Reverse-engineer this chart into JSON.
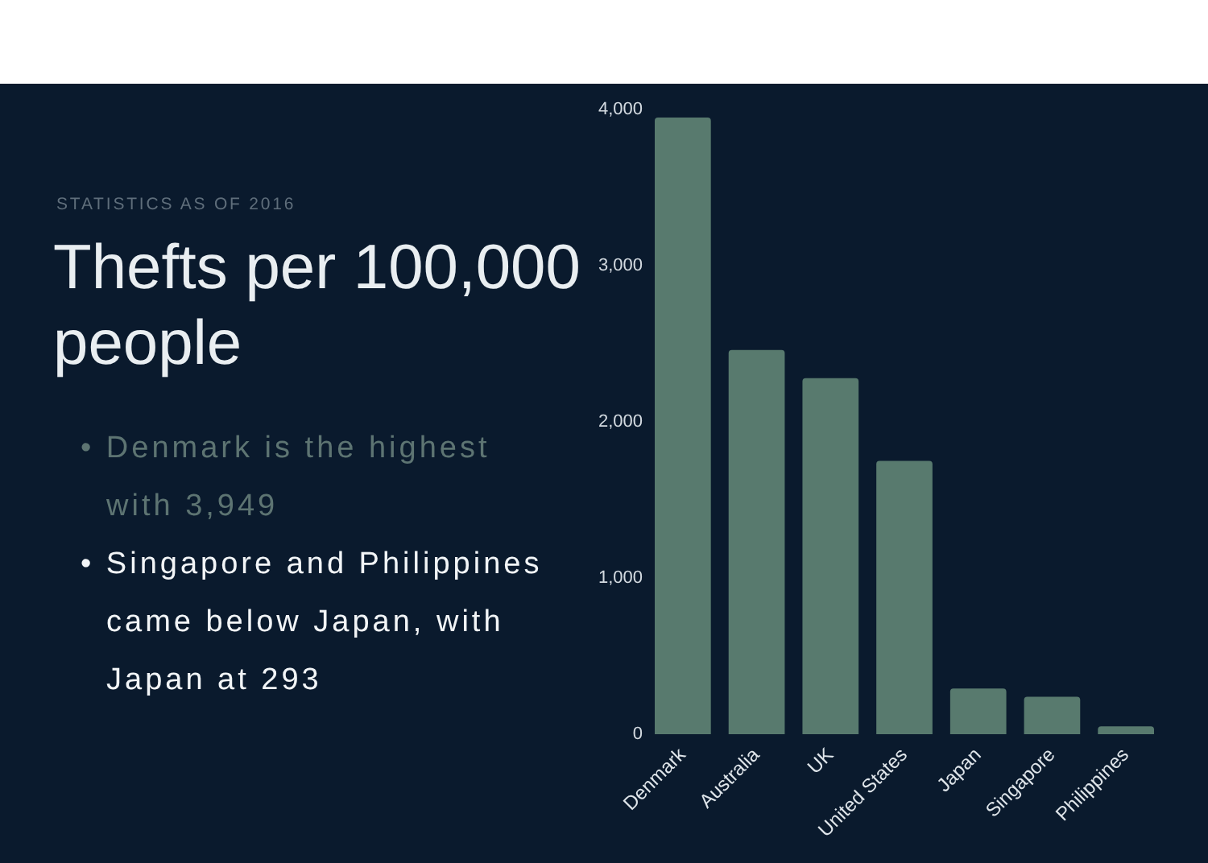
{
  "chart_data": {
    "type": "bar",
    "title": "Thefts per 100,000 people",
    "subtitle": "STATISTICS AS OF 2016",
    "categories": [
      "Denmark",
      "Australia",
      "UK",
      "United States",
      "Japan",
      "Singapore",
      "Philippines"
    ],
    "values": [
      3949,
      2460,
      2280,
      1750,
      293,
      240,
      50
    ],
    "color": "#587a6e",
    "ylim": [
      0,
      4000
    ],
    "yticks": [
      0,
      {
        "value": 1000,
        "label": "1,000"
      },
      {
        "value": 2000,
        "label": "2,000"
      },
      {
        "value": 3000,
        "label": "3,000"
      },
      {
        "value": 4000,
        "label": "4,000"
      }
    ],
    "grid": false,
    "annotations": [
      "• Denmark is the highest with 3,949",
      "• Singapore and Philippines came below Japan, with Japan at 293"
    ]
  }
}
